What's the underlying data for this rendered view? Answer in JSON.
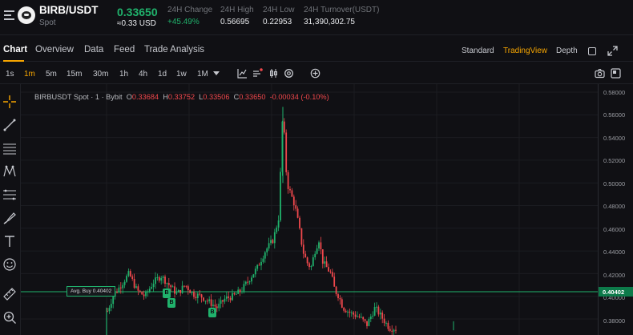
{
  "header": {
    "pair": "BIRB/USDT",
    "market": "Spot",
    "last_price": "0.33650",
    "usd_price": "≈0.33 USD",
    "stats": [
      {
        "label": "24H Change",
        "value": "+45.49%",
        "up": true
      },
      {
        "label": "24H High",
        "value": "0.56695",
        "up": false
      },
      {
        "label": "24H Low",
        "value": "0.22953",
        "up": false
      },
      {
        "label": "24H Turnover(USDT)",
        "value": "31,390,302.75",
        "up": false
      }
    ]
  },
  "tabs": [
    "Chart",
    "Overview",
    "Data",
    "Feed",
    "Trade Analysis"
  ],
  "views": [
    "Standard",
    "TradingView",
    "Depth"
  ],
  "timeframes": [
    "1s",
    "1m",
    "5m",
    "15m",
    "30m",
    "1h",
    "4h",
    "1d",
    "1w",
    "1M"
  ],
  "active_timeframe": "1m",
  "ohlc": {
    "symbol": "BIRBUSDT Spot · 1 · Bybit",
    "o_label": "O",
    "o": "0.33684",
    "h_label": "H",
    "h": "0.33752",
    "l_label": "L",
    "l": "0.33506",
    "c_label": "C",
    "c": "0.33650",
    "change": "-0.00034 (-0.10%)"
  },
  "price_axis": [
    "0.58000",
    "0.56000",
    "0.54000",
    "0.52000",
    "0.50000",
    "0.48000",
    "0.46000",
    "0.44000",
    "0.42000",
    "0.40000",
    "0.38000"
  ],
  "avg_buy": {
    "label": "Avg. Buy 0.40402",
    "price_tag": "0.40402"
  },
  "buy_marker_label": "B",
  "colors": {
    "up": "#20b26c",
    "down": "#f0484c",
    "accent": "#f7a600",
    "background": "#101014"
  }
}
